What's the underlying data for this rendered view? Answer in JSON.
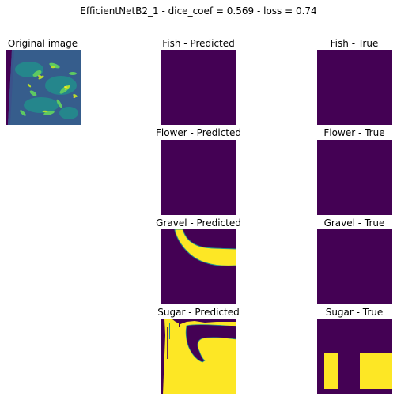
{
  "figure": {
    "suptitle": "EfficientNetB2_1 - dice_coef = 0.569 - loss = 0.74"
  },
  "original": {
    "title": "Original image"
  },
  "colors": {
    "background": "#440154",
    "foreground": "#fde725",
    "edge": "#21918c"
  },
  "panels": [
    {
      "label": "Fish - Predicted"
    },
    {
      "label": "Fish - True"
    },
    {
      "label": "Flower - Predicted"
    },
    {
      "label": "Flower - True"
    },
    {
      "label": "Gravel - Predicted"
    },
    {
      "label": "Gravel - True"
    },
    {
      "label": "Sugar - Predicted"
    },
    {
      "label": "Sugar - True"
    }
  ]
}
